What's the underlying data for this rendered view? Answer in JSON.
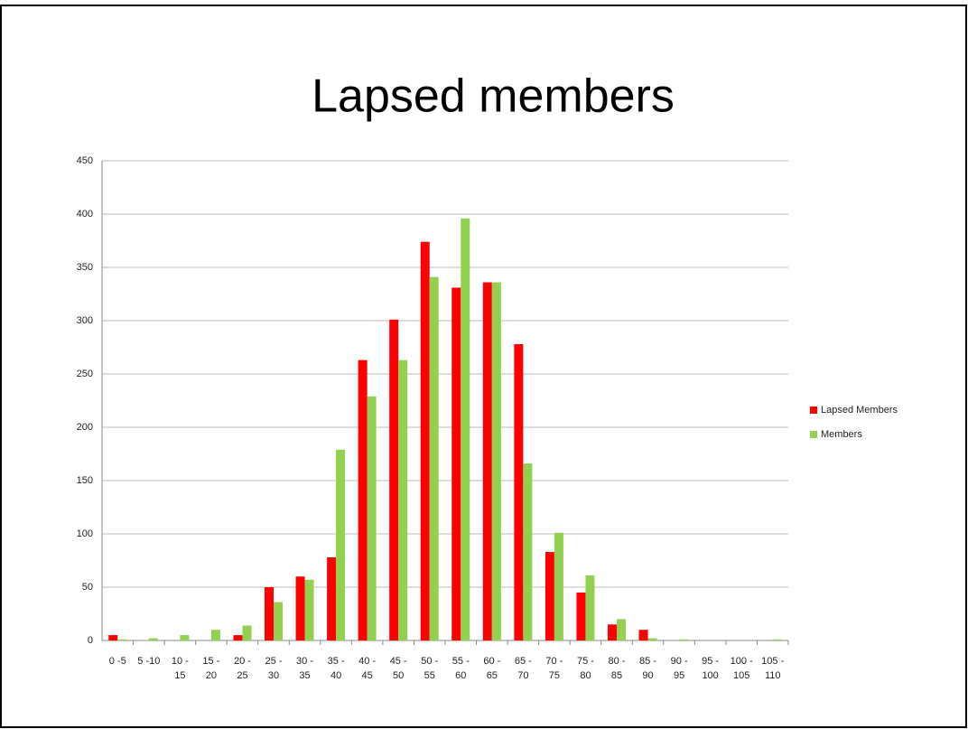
{
  "chart_data": {
    "type": "bar",
    "title": "Lapsed members",
    "categories": [
      "0 -5",
      "5 -10",
      "10 - 15",
      "15 - 20",
      "20 - 25",
      "25 - 30",
      "30 - 35",
      "35 - 40",
      "40 - 45",
      "45 - 50",
      "50 - 55",
      "55 - 60",
      "60 - 65",
      "65 - 70",
      "70 - 75",
      "75 - 80",
      "80 - 85",
      "85 - 90",
      "90 - 95",
      "95 - 100",
      "100 - 105",
      "105 - 110"
    ],
    "series": [
      {
        "name": "Lapsed Members",
        "color": "#ff0000",
        "values": [
          5,
          0,
          0,
          0,
          5,
          50,
          60,
          78,
          263,
          301,
          374,
          331,
          336,
          278,
          83,
          45,
          15,
          10,
          0,
          0,
          0,
          0
        ]
      },
      {
        "name": "Members",
        "color": "#92d050",
        "values": [
          1,
          2,
          5,
          10,
          14,
          36,
          57,
          179,
          229,
          263,
          341,
          396,
          336,
          166,
          101,
          61,
          20,
          2,
          1,
          0,
          0,
          1
        ]
      }
    ],
    "ylim": [
      0,
      450
    ],
    "yticks": [
      0,
      50,
      100,
      150,
      200,
      250,
      300,
      350,
      400,
      450
    ],
    "grid": true,
    "legend": "right"
  }
}
